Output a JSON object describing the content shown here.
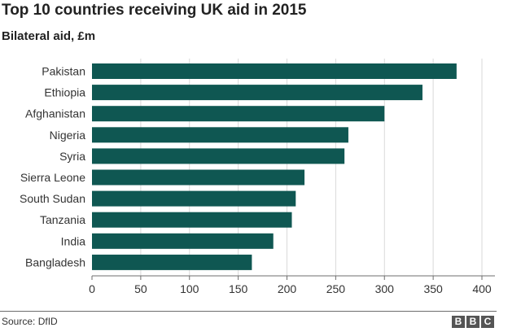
{
  "title": "Top 10 countries receiving UK aid in 2015",
  "subtitle": "Bilateral aid, £m",
  "source": "Source: DfID",
  "logo": {
    "letters": [
      "B",
      "B",
      "C"
    ]
  },
  "colors": {
    "bar": "#0f5752",
    "grid": "#d9d9d9",
    "axis": "#6d6d6d",
    "text": "#222222"
  },
  "chart_data": {
    "type": "bar",
    "orientation": "horizontal",
    "categories": [
      "Pakistan",
      "Ethiopia",
      "Afghanistan",
      "Nigeria",
      "Syria",
      "Sierra Leone",
      "South Sudan",
      "Tanzania",
      "India",
      "Bangladesh"
    ],
    "values": [
      374,
      339,
      300,
      263,
      259,
      218,
      209,
      205,
      186,
      164
    ],
    "title": "Top 10 countries receiving UK aid in 2015",
    "subtitle": "Bilateral aid, £m",
    "xlabel": "",
    "ylabel": "",
    "xlim": [
      0,
      400
    ],
    "xticks": [
      0,
      50,
      100,
      150,
      200,
      250,
      300,
      350,
      400
    ],
    "grid": true
  }
}
